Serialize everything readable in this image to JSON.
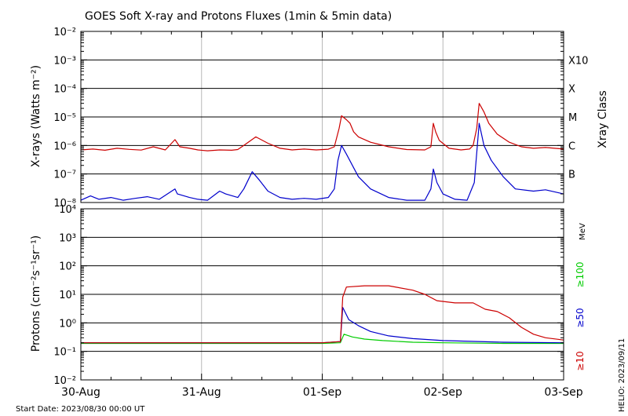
{
  "chart_data": [
    {
      "type": "line",
      "title": "GOES Soft X-ray and Protons Fluxes   (1min & 5min data)",
      "ylabel": "X-rays (Watts m⁻²)",
      "yscale": "log",
      "ylim": [
        1e-08,
        0.01
      ],
      "y_tick_labels": [
        "10⁻²",
        "10⁻³",
        "10⁻⁴",
        "10⁻⁵",
        "10⁻⁶",
        "10⁻⁷",
        "10⁻⁸"
      ],
      "right_axis_label": "Xray Class",
      "class_labels": [
        {
          "label": "X10",
          "flux": 0.001
        },
        {
          "label": "X",
          "flux": 0.0001
        },
        {
          "label": "M",
          "flux": 1e-05
        },
        {
          "label": "C",
          "flux": 1e-06
        },
        {
          "label": "B",
          "flux": 1e-07
        }
      ],
      "grid": true,
      "series": [
        {
          "color": "#cc0000",
          "points": [
            [
              0,
              7e-07
            ],
            [
              0.1,
              7.5e-07
            ],
            [
              0.2,
              6.8e-07
            ],
            [
              0.3,
              8e-07
            ],
            [
              0.4,
              7.3e-07
            ],
            [
              0.5,
              6.9e-07
            ],
            [
              0.6,
              9e-07
            ],
            [
              0.7,
              7e-07
            ],
            [
              0.78,
              1.6e-06
            ],
            [
              0.82,
              9e-07
            ],
            [
              0.9,
              8e-07
            ],
            [
              0.97,
              7e-07
            ],
            [
              1.05,
              6.5e-07
            ],
            [
              1.15,
              7e-07
            ],
            [
              1.25,
              6.8e-07
            ],
            [
              1.3,
              7.2e-07
            ],
            [
              1.35,
              1e-06
            ],
            [
              1.45,
              2e-06
            ],
            [
              1.55,
              1.2e-06
            ],
            [
              1.65,
              8e-07
            ],
            [
              1.75,
              7e-07
            ],
            [
              1.85,
              7.5e-07
            ],
            [
              1.95,
              7e-07
            ],
            [
              2.05,
              7.4e-07
            ],
            [
              2.1,
              9e-07
            ],
            [
              2.14,
              4e-06
            ],
            [
              2.16,
              1.1e-05
            ],
            [
              2.2,
              8e-06
            ],
            [
              2.23,
              6e-06
            ],
            [
              2.26,
              3e-06
            ],
            [
              2.3,
              2e-06
            ],
            [
              2.4,
              1.3e-06
            ],
            [
              2.55,
              9e-07
            ],
            [
              2.7,
              7.2e-07
            ],
            [
              2.85,
              7e-07
            ],
            [
              2.9,
              9e-07
            ],
            [
              2.92,
              6e-06
            ],
            [
              2.94,
              3e-06
            ],
            [
              2.97,
              1.5e-06
            ],
            [
              3.05,
              8e-07
            ],
            [
              3.15,
              7e-07
            ],
            [
              3.22,
              7.5e-07
            ],
            [
              3.25,
              1e-06
            ],
            [
              3.28,
              4e-06
            ],
            [
              3.3,
              3e-05
            ],
            [
              3.34,
              1.5e-05
            ],
            [
              3.38,
              6e-06
            ],
            [
              3.45,
              2.5e-06
            ],
            [
              3.55,
              1.3e-06
            ],
            [
              3.65,
              9e-07
            ],
            [
              3.75,
              8e-07
            ],
            [
              3.85,
              8.5e-07
            ],
            [
              4.0,
              7.5e-07
            ]
          ]
        },
        {
          "color": "#0000cc",
          "points": [
            [
              0,
              1.2e-08
            ],
            [
              0.08,
              1.7e-08
            ],
            [
              0.15,
              1.3e-08
            ],
            [
              0.25,
              1.5e-08
            ],
            [
              0.35,
              1.2e-08
            ],
            [
              0.45,
              1.4e-08
            ],
            [
              0.55,
              1.6e-08
            ],
            [
              0.65,
              1.3e-08
            ],
            [
              0.78,
              3e-08
            ],
            [
              0.8,
              2e-08
            ],
            [
              0.9,
              1.5e-08
            ],
            [
              0.97,
              1.3e-08
            ],
            [
              1.05,
              1.2e-08
            ],
            [
              1.15,
              2.5e-08
            ],
            [
              1.2,
              2e-08
            ],
            [
              1.3,
              1.5e-08
            ],
            [
              1.35,
              3e-08
            ],
            [
              1.42,
              1.2e-07
            ],
            [
              1.48,
              6e-08
            ],
            [
              1.55,
              2.5e-08
            ],
            [
              1.65,
              1.5e-08
            ],
            [
              1.75,
              1.3e-08
            ],
            [
              1.85,
              1.4e-08
            ],
            [
              1.95,
              1.3e-08
            ],
            [
              2.05,
              1.5e-08
            ],
            [
              2.1,
              3e-08
            ],
            [
              2.13,
              3e-07
            ],
            [
              2.16,
              1e-06
            ],
            [
              2.2,
              5e-07
            ],
            [
              2.25,
              2e-07
            ],
            [
              2.3,
              8e-08
            ],
            [
              2.4,
              3e-08
            ],
            [
              2.55,
              1.5e-08
            ],
            [
              2.7,
              1.2e-08
            ],
            [
              2.85,
              1.2e-08
            ],
            [
              2.9,
              3e-08
            ],
            [
              2.92,
              1.5e-07
            ],
            [
              2.95,
              5e-08
            ],
            [
              3.0,
              2e-08
            ],
            [
              3.1,
              1.3e-08
            ],
            [
              3.2,
              1.2e-08
            ],
            [
              3.26,
              5e-08
            ],
            [
              3.3,
              6e-06
            ],
            [
              3.34,
              1e-06
            ],
            [
              3.4,
              3e-07
            ],
            [
              3.5,
              8e-08
            ],
            [
              3.6,
              3e-08
            ],
            [
              3.75,
              2.5e-08
            ],
            [
              3.85,
              2.8e-08
            ],
            [
              4.0,
              2e-08
            ]
          ]
        }
      ]
    },
    {
      "type": "line",
      "ylabel": "Protons (cm⁻²s⁻¹sr⁻¹)",
      "yscale": "log",
      "ylim": [
        0.01,
        10000
      ],
      "y_tick_labels": [
        "10⁴",
        "10³",
        "10²",
        "10¹",
        "10⁰",
        "10⁻¹",
        "10⁻²"
      ],
      "right_axis_unit": "MeV",
      "threshold": 10,
      "x_tick_labels": [
        "30-Aug",
        "31-Aug",
        "01-Sep",
        "02-Sep",
        "03-Sep"
      ],
      "xlim": [
        0,
        4
      ],
      "footer_left": "Start Date: 2023/08/30 00:00 UT",
      "footer_right": "HELIO: 2023/09/11",
      "series": [
        {
          "name": "≥100",
          "color": "#00cc00",
          "points": [
            [
              0,
              0.19
            ],
            [
              0.5,
              0.19
            ],
            [
              1.0,
              0.19
            ],
            [
              1.5,
              0.19
            ],
            [
              2.0,
              0.19
            ],
            [
              2.15,
              0.2
            ],
            [
              2.18,
              0.4
            ],
            [
              2.25,
              0.32
            ],
            [
              2.35,
              0.27
            ],
            [
              2.5,
              0.24
            ],
            [
              2.75,
              0.21
            ],
            [
              3.0,
              0.2
            ],
            [
              3.5,
              0.19
            ],
            [
              4.0,
              0.19
            ]
          ]
        },
        {
          "name": "≥50",
          "color": "#0000cc",
          "points": [
            [
              0,
              0.2
            ],
            [
              0.5,
              0.2
            ],
            [
              1.0,
              0.2
            ],
            [
              1.5,
              0.2
            ],
            [
              2.0,
              0.2
            ],
            [
              2.15,
              0.22
            ],
            [
              2.17,
              3.5
            ],
            [
              2.22,
              1.3
            ],
            [
              2.3,
              0.8
            ],
            [
              2.4,
              0.5
            ],
            [
              2.55,
              0.35
            ],
            [
              2.75,
              0.28
            ],
            [
              3.0,
              0.24
            ],
            [
              3.5,
              0.21
            ],
            [
              4.0,
              0.2
            ]
          ]
        },
        {
          "name": "≥10",
          "color": "#cc0000",
          "points": [
            [
              0,
              0.2
            ],
            [
              0.5,
              0.2
            ],
            [
              1.0,
              0.2
            ],
            [
              1.5,
              0.2
            ],
            [
              2.0,
              0.2
            ],
            [
              2.15,
              0.22
            ],
            [
              2.17,
              8
            ],
            [
              2.2,
              18
            ],
            [
              2.35,
              20
            ],
            [
              2.55,
              20
            ],
            [
              2.75,
              14
            ],
            [
              2.85,
              10
            ],
            [
              2.95,
              6
            ],
            [
              3.1,
              5
            ],
            [
              3.25,
              5
            ],
            [
              3.35,
              3
            ],
            [
              3.45,
              2.5
            ],
            [
              3.55,
              1.5
            ],
            [
              3.65,
              0.7
            ],
            [
              3.75,
              0.4
            ],
            [
              3.85,
              0.3
            ],
            [
              4.0,
              0.25
            ]
          ]
        }
      ]
    }
  ]
}
